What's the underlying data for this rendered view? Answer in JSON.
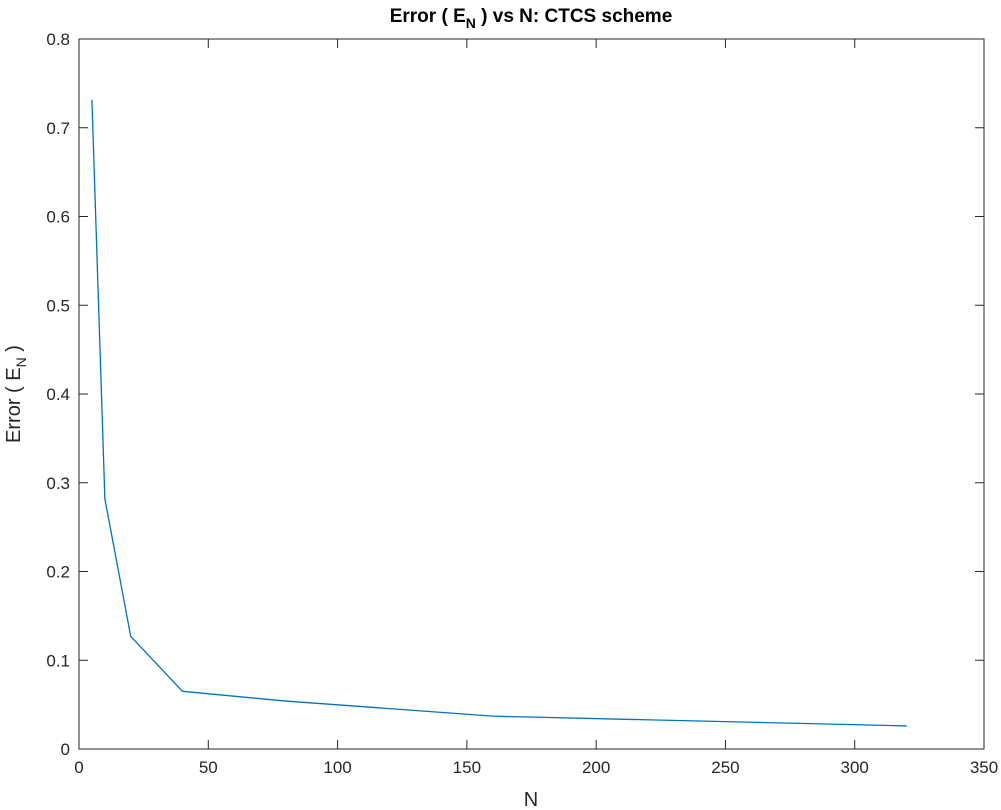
{
  "chart_data": {
    "type": "line",
    "title": {
      "before": "Error ( E",
      "subscript": "N",
      "after": " ) vs N: CTCS scheme"
    },
    "xlabel": "N",
    "ylabel": {
      "before": "Error ( E",
      "subscript": "N",
      "after": " )"
    },
    "xlim": [
      0,
      350
    ],
    "ylim": [
      0,
      0.8
    ],
    "xticks": [
      "0",
      "50",
      "100",
      "150",
      "200",
      "250",
      "300",
      "350"
    ],
    "yticks": [
      "0",
      "0.1",
      "0.2",
      "0.3",
      "0.4",
      "0.5",
      "0.6",
      "0.7",
      "0.8"
    ],
    "grid": false,
    "series": [
      {
        "color": "#0072BD",
        "x": [
          5,
          10,
          20,
          40,
          80,
          160,
          320
        ],
        "y": [
          0.731,
          0.282,
          0.127,
          0.065,
          0.054,
          0.037,
          0.026
        ]
      }
    ]
  }
}
